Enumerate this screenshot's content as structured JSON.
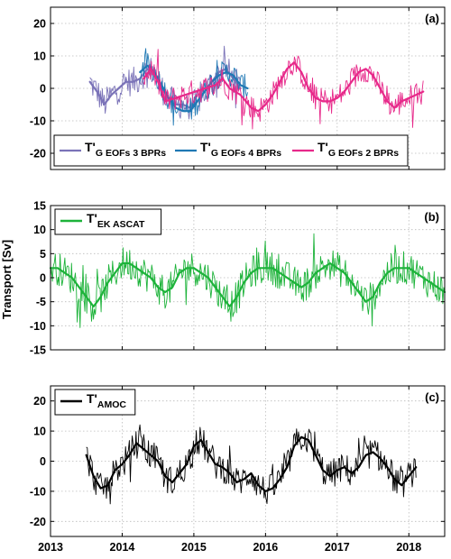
{
  "figure": {
    "shared_ylabel": "Transport [Sv]",
    "x_ticks": [
      "2013",
      "2014",
      "2015",
      "2016",
      "2017",
      "2018"
    ],
    "grid": true,
    "colors": {
      "purple": "#7b73b8",
      "blue": "#1f78b4",
      "magenta": "#e7298a",
      "green": "#1db33a",
      "black": "#000000"
    }
  },
  "chart_data": [
    {
      "panel_label": "(a)",
      "type": "line",
      "xlim": [
        2013.0,
        2018.5
      ],
      "ylim": [
        -25,
        25
      ],
      "y_ticks": [
        "20",
        "10",
        "0",
        "-10",
        "-20"
      ],
      "legend_placement": "bottom",
      "legend": [
        {
          "prefix": "T'",
          "sub": "G EOFs 3 BPRs",
          "color": "purple"
        },
        {
          "prefix": "T'",
          "sub": "G EOFs 4 BPRs",
          "color": "blue"
        },
        {
          "prefix": "T'",
          "sub": "G EOFs 2 BPRs",
          "color": "magenta"
        }
      ],
      "series": [
        {
          "color": "purple",
          "x": [
            2013.55,
            2013.65,
            2013.75,
            2013.85,
            2013.95,
            2014.05,
            2014.15,
            2014.25,
            2014.35,
            2014.45,
            2014.55,
            2014.65,
            2014.75,
            2014.85,
            2014.95,
            2015.05,
            2015.15,
            2015.25,
            2015.35,
            2015.45,
            2015.55,
            2015.65
          ],
          "smooth": [
            2,
            -1,
            -5,
            -2,
            0,
            2,
            2,
            3,
            6,
            5,
            0,
            -3,
            -5,
            -5,
            -6,
            -4,
            -1,
            2,
            5,
            6,
            3,
            0
          ],
          "amp": 4.5
        },
        {
          "color": "blue",
          "x": [
            2014.25,
            2014.35,
            2014.45,
            2014.55,
            2014.65,
            2014.75,
            2014.85,
            2014.95,
            2015.05,
            2015.15,
            2015.25,
            2015.35,
            2015.45,
            2015.55,
            2015.65,
            2015.75
          ],
          "smooth": [
            5,
            7,
            5,
            1,
            -3,
            -6,
            -7,
            -7,
            -4,
            -1,
            2,
            4,
            5,
            4,
            1,
            0
          ],
          "amp": 4.0
        },
        {
          "color": "magenta",
          "x": [
            2014.3,
            2014.4,
            2014.5,
            2014.6,
            2015.3,
            2015.4,
            2015.5,
            2015.65,
            2015.8,
            2015.9,
            2016.0,
            2016.1,
            2016.2,
            2016.3,
            2016.4,
            2016.5,
            2016.6,
            2016.7,
            2016.8,
            2016.9,
            2017.0,
            2017.1,
            2017.2,
            2017.3,
            2017.4,
            2017.5,
            2017.6,
            2017.7,
            2017.8,
            2017.9,
            2018.0,
            2018.1,
            2018.2
          ],
          "smooth": [
            3,
            6,
            2,
            -4,
            1,
            3,
            0,
            -2,
            -6,
            -7,
            -5,
            -2,
            2,
            6,
            8,
            5,
            0,
            -3,
            -4,
            -4,
            -3,
            -1,
            2,
            5,
            6,
            4,
            0,
            -4,
            -6,
            -4,
            -3,
            -2,
            -1
          ],
          "amp": 4.0
        }
      ]
    },
    {
      "panel_label": "(b)",
      "type": "line",
      "xlim": [
        2013.0,
        2018.5
      ],
      "ylim": [
        -15,
        15
      ],
      "y_ticks": [
        "15",
        "10",
        "5",
        "0",
        "-5",
        "-10",
        "-15"
      ],
      "legend_placement": "top-left",
      "legend": [
        {
          "prefix": "T'",
          "sub": "EK ASCAT",
          "color": "green"
        }
      ],
      "series": [
        {
          "color": "green",
          "x": [
            2013.0,
            2013.1,
            2013.2,
            2013.3,
            2013.4,
            2013.5,
            2013.6,
            2013.7,
            2013.8,
            2013.9,
            2014.0,
            2014.1,
            2014.2,
            2014.3,
            2014.4,
            2014.5,
            2014.6,
            2014.7,
            2014.8,
            2014.9,
            2015.0,
            2015.1,
            2015.2,
            2015.3,
            2015.4,
            2015.5,
            2015.6,
            2015.7,
            2015.8,
            2015.9,
            2016.0,
            2016.1,
            2016.2,
            2016.3,
            2016.4,
            2016.5,
            2016.6,
            2016.7,
            2016.8,
            2016.9,
            2017.0,
            2017.1,
            2017.2,
            2017.3,
            2017.4,
            2017.5,
            2017.6,
            2017.7,
            2017.8,
            2017.9,
            2018.0,
            2018.1,
            2018.2,
            2018.3,
            2018.4,
            2018.5
          ],
          "smooth": [
            2,
            2,
            1,
            0,
            -2,
            -4,
            -6,
            -4,
            -1,
            1,
            3,
            3,
            2,
            1,
            0,
            -2,
            -3,
            -2,
            1,
            2,
            2,
            1,
            0,
            -2,
            -4,
            -6,
            -4,
            -1,
            1,
            2,
            2,
            2,
            1,
            0,
            -1,
            -2,
            -1,
            1,
            2,
            3,
            2,
            1,
            -1,
            -3,
            -5,
            -4,
            -1,
            1,
            2,
            2,
            2,
            1,
            0,
            -1,
            -2,
            -3
          ],
          "amp": 3.5
        }
      ]
    },
    {
      "panel_label": "(c)",
      "type": "line",
      "xlim": [
        2013.0,
        2018.5
      ],
      "ylim": [
        -25,
        25
      ],
      "y_ticks": [
        "20",
        "10",
        "0",
        "-10",
        "-20"
      ],
      "legend_placement": "top-left",
      "legend": [
        {
          "prefix": "T'",
          "sub": "AMOC",
          "color": "black"
        }
      ],
      "series": [
        {
          "color": "black",
          "x": [
            2013.5,
            2013.6,
            2013.7,
            2013.8,
            2013.9,
            2014.0,
            2014.1,
            2014.2,
            2014.3,
            2014.4,
            2014.5,
            2014.6,
            2014.7,
            2014.8,
            2014.9,
            2015.0,
            2015.1,
            2015.2,
            2015.3,
            2015.4,
            2015.5,
            2015.6,
            2015.7,
            2015.8,
            2015.9,
            2016.0,
            2016.1,
            2016.2,
            2016.3,
            2016.4,
            2016.5,
            2016.6,
            2016.7,
            2016.8,
            2016.9,
            2017.0,
            2017.1,
            2017.2,
            2017.3,
            2017.4,
            2017.5,
            2017.6,
            2017.7,
            2017.8,
            2017.9,
            2018.0,
            2018.1
          ],
          "smooth": [
            2,
            -5,
            -9,
            -8,
            -3,
            -1,
            2,
            6,
            4,
            2,
            0,
            -5,
            -7,
            -4,
            -1,
            5,
            7,
            3,
            -1,
            -2,
            -4,
            -7,
            -6,
            -4,
            -8,
            -10,
            -9,
            -6,
            -2,
            5,
            8,
            7,
            2,
            -3,
            -5,
            -3,
            -2,
            -4,
            -2,
            2,
            3,
            1,
            -2,
            -6,
            -8,
            -5,
            -2
          ],
          "amp": 5.0
        }
      ]
    }
  ]
}
